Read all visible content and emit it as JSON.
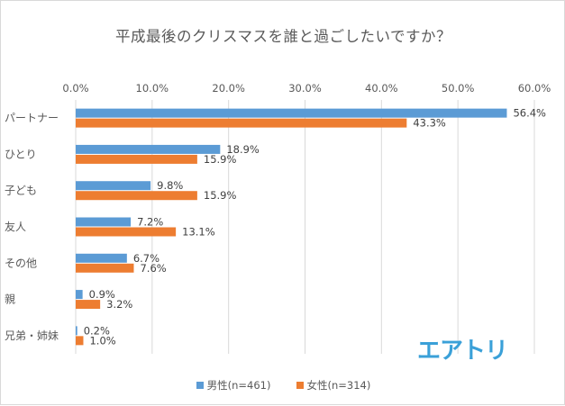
{
  "chart_data": {
    "type": "bar",
    "orientation": "horizontal",
    "title": "平成最後のクリスマスを誰と過ごしたいですか？",
    "categories": [
      "パートナー",
      "ひとり",
      "子ども",
      "友人",
      "その他",
      "親",
      "兄弟・姉妹"
    ],
    "series": [
      {
        "name": "男性(n=461)",
        "color": "#5b9bd5",
        "values": [
          56.4,
          18.9,
          9.8,
          7.2,
          6.7,
          0.9,
          0.2
        ],
        "labels": [
          "56.4%",
          "18.9%",
          "9.8%",
          "7.2%",
          "6.7%",
          "0.9%",
          "0.2%"
        ]
      },
      {
        "name": "女性(n=314)",
        "color": "#ed7d31",
        "values": [
          43.3,
          15.9,
          15.9,
          13.1,
          7.6,
          3.2,
          1.0
        ],
        "labels": [
          "43.3%",
          "15.9%",
          "15.9%",
          "13.1%",
          "7.6%",
          "3.2%",
          "1.0%"
        ]
      }
    ],
    "xlim": [
      0,
      60
    ],
    "xticks": [
      "0.0%",
      "10.0%",
      "20.0%",
      "30.0%",
      "40.0%",
      "50.0%",
      "60.0%"
    ],
    "xaxis_position": "top",
    "grid": true,
    "legend": "bottom"
  },
  "logo": {
    "text": "エアトリ",
    "color": "#3aa0d8"
  }
}
